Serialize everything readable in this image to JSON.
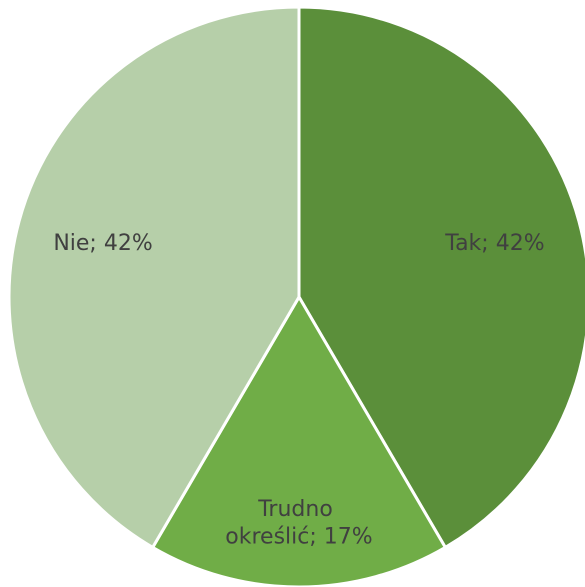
{
  "chart_data": {
    "type": "pie",
    "values": [
      42,
      17,
      42
    ],
    "value_labels": [
      "Tak; 42%",
      "Trudno określić; 17%",
      "Nie; 42%"
    ],
    "colors": [
      "#5b8f3a",
      "#70ad47",
      "#b6cfa9"
    ]
  }
}
